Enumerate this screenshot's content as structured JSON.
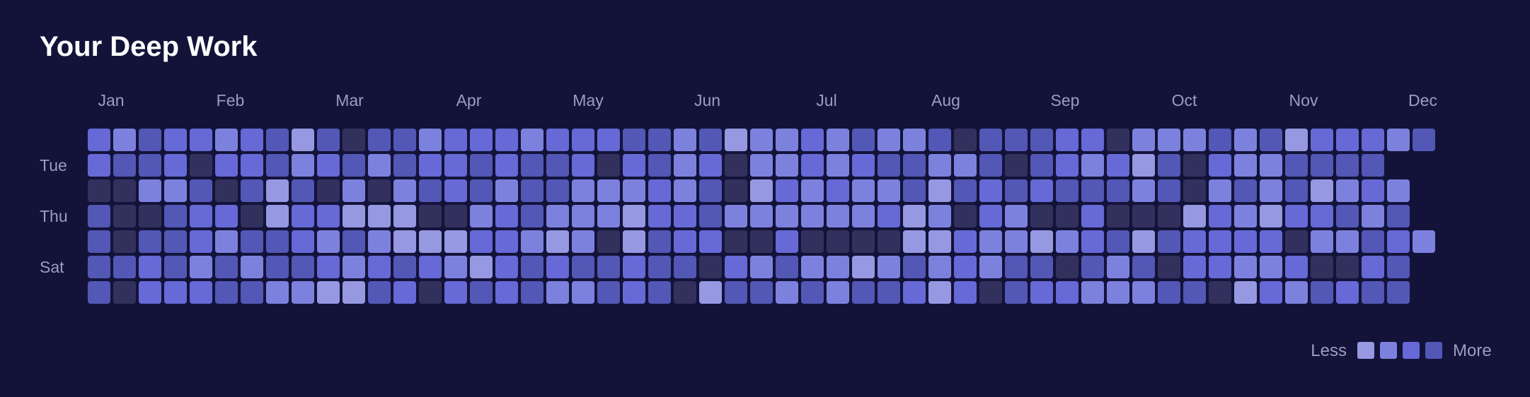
{
  "title": "Your Deep Work",
  "legend": {
    "less_label": "Less",
    "more_label": "More"
  },
  "colors": {
    "background": "#13133a",
    "levels": [
      "#32315e",
      "#5357b5",
      "#6669d6",
      "#7d81de",
      "#9698e2"
    ]
  },
  "chart_data": {
    "type": "heatmap",
    "title": "Your Deep Work",
    "months": [
      "Jan",
      "Feb",
      "Mar",
      "Apr",
      "May",
      "Jun",
      "Jul",
      "Aug",
      "Sep",
      "Oct",
      "Nov",
      "Dec"
    ],
    "day_labels": [
      "",
      "Tue",
      "",
      "Thu",
      "",
      "Sat",
      ""
    ],
    "weeks": 53,
    "value_scale": [
      0,
      4
    ],
    "legend_levels": [
      4,
      3,
      2,
      1
    ],
    "rows": [
      [
        2,
        3,
        1,
        2,
        2,
        3,
        2,
        1,
        4,
        1,
        0,
        1,
        1,
        3,
        2,
        2,
        2,
        3,
        2,
        2,
        2,
        1,
        1,
        3,
        1,
        4,
        3,
        3,
        2,
        3,
        1,
        3,
        3,
        1,
        0,
        1,
        1,
        1,
        2,
        2,
        0,
        3,
        3,
        3,
        1,
        3,
        1,
        4,
        2,
        2,
        2,
        3,
        1
      ],
      [
        2,
        1,
        1,
        2,
        0,
        2,
        2,
        1,
        3,
        2,
        1,
        3,
        1,
        2,
        2,
        1,
        2,
        1,
        1,
        2,
        0,
        2,
        1,
        3,
        2,
        0,
        3,
        3,
        2,
        3,
        2,
        1,
        1,
        3,
        3,
        1,
        0,
        1,
        2,
        3,
        2,
        4,
        1,
        0,
        2,
        3,
        3,
        1,
        1,
        1,
        1
      ],
      [
        0,
        0,
        3,
        3,
        1,
        0,
        1,
        4,
        1,
        0,
        3,
        0,
        3,
        1,
        2,
        1,
        3,
        1,
        1,
        3,
        3,
        3,
        2,
        3,
        1,
        0,
        4,
        2,
        3,
        2,
        3,
        3,
        1,
        4,
        1,
        2,
        1,
        2,
        1,
        1,
        1,
        3,
        1,
        0,
        3,
        1,
        3,
        1,
        4,
        3,
        2,
        3
      ],
      [
        1,
        0,
        0,
        1,
        2,
        2,
        0,
        4,
        2,
        2,
        4,
        4,
        4,
        0,
        0,
        3,
        2,
        1,
        3,
        3,
        3,
        4,
        2,
        2,
        1,
        3,
        3,
        3,
        3,
        3,
        3,
        2,
        4,
        3,
        0,
        2,
        3,
        0,
        0,
        2,
        0,
        0,
        0,
        4,
        2,
        3,
        4,
        2,
        2,
        1,
        3,
        1
      ],
      [
        1,
        0,
        1,
        1,
        2,
        3,
        1,
        1,
        2,
        3,
        1,
        3,
        4,
        4,
        4,
        2,
        2,
        3,
        4,
        3,
        0,
        4,
        1,
        2,
        2,
        0,
        0,
        2,
        0,
        0,
        0,
        0,
        4,
        4,
        2,
        3,
        3,
        4,
        3,
        2,
        1,
        4,
        1,
        2,
        2,
        2,
        2,
        0,
        3,
        3,
        1,
        2,
        3
      ],
      [
        1,
        1,
        2,
        1,
        3,
        1,
        3,
        1,
        1,
        2,
        3,
        2,
        1,
        2,
        3,
        4,
        2,
        1,
        2,
        1,
        1,
        2,
        1,
        1,
        0,
        2,
        3,
        1,
        3,
        3,
        4,
        3,
        1,
        3,
        2,
        3,
        1,
        1,
        0,
        1,
        3,
        1,
        0,
        2,
        2,
        3,
        3,
        2,
        0,
        0,
        2,
        1
      ],
      [
        1,
        0,
        2,
        2,
        2,
        1,
        1,
        3,
        3,
        4,
        4,
        1,
        2,
        0,
        2,
        1,
        2,
        1,
        3,
        3,
        1,
        2,
        1,
        0,
        4,
        1,
        1,
        3,
        1,
        3,
        1,
        1,
        2,
        4,
        2,
        0,
        1,
        2,
        2,
        3,
        3,
        3,
        1,
        1,
        0,
        4,
        2,
        3,
        1,
        2,
        1,
        1
      ]
    ]
  }
}
